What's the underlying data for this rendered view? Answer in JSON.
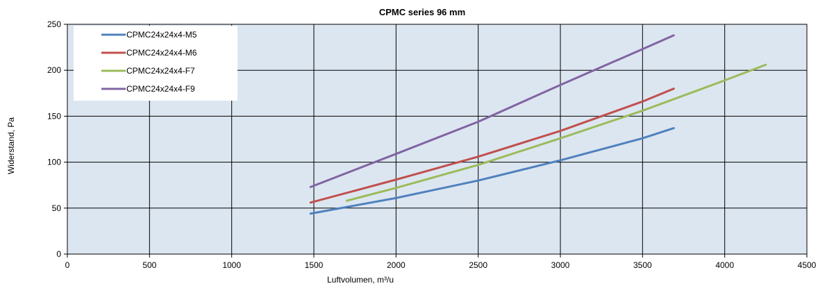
{
  "chart_data": {
    "type": "line",
    "title": "CPMC series 96 mm",
    "xlabel": "Luftvolumen, m³/u",
    "ylabel": "Widerstand, Pa",
    "xlim": [
      0,
      4500
    ],
    "ylim": [
      0,
      250
    ],
    "x_ticks": [
      0,
      500,
      1000,
      1500,
      2000,
      2500,
      3000,
      3500,
      4000,
      4500
    ],
    "y_ticks": [
      0,
      50,
      100,
      150,
      200,
      250
    ],
    "grid": true,
    "legend_position": "top-left",
    "plot_background": "#dce6f1",
    "series": [
      {
        "name": "CPMC24x24x4-M5",
        "color": "#4f81bd",
        "x": [
          1480,
          2000,
          2500,
          3000,
          3500,
          3690
        ],
        "y": [
          44,
          61,
          80,
          102,
          126,
          137
        ]
      },
      {
        "name": "CPMC24x24x4-M6",
        "color": "#c0504d",
        "x": [
          1480,
          2000,
          2500,
          3000,
          3500,
          3690
        ],
        "y": [
          56,
          81,
          106,
          134,
          166,
          180
        ]
      },
      {
        "name": "CPMC24x24x4-F7",
        "color": "#9bbb59",
        "x": [
          1700,
          2000,
          2500,
          3000,
          3500,
          4000,
          4250
        ],
        "y": [
          58,
          72,
          97,
          126,
          156,
          189,
          206
        ]
      },
      {
        "name": "CPMC24x24x4-F9",
        "color": "#8064a2",
        "x": [
          1480,
          2000,
          2500,
          3000,
          3500,
          3690
        ],
        "y": [
          73,
          109,
          144,
          184,
          223,
          238
        ]
      }
    ]
  }
}
